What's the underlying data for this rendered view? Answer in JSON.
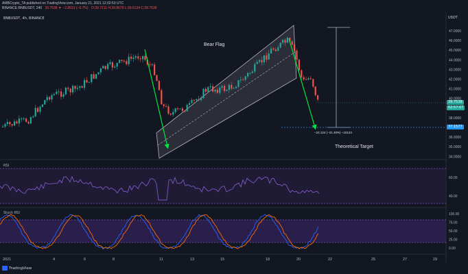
{
  "header": {
    "published": "AMBCrypto_TA published on TradingView.com, January 21, 2021 12:02:53 UTC",
    "symbol_line": "BINANCE:BNBUSDT, 240",
    "price_change": "39.7538 ▼ −2.8531 (−6.7%)",
    "ohlc": "O:39.7211 H:39.8679 L:39.6134 C:39.7538",
    "legend_title": "BNBUSDT, 4h, BINANCE",
    "currency": "USDT"
  },
  "price_axis": {
    "labels": [
      "47.0000",
      "46.0000",
      "45.0000",
      "44.0000",
      "43.0000",
      "42.0000",
      "41.0000",
      "40.0000",
      "39.0000",
      "38.0000",
      "37.0000",
      "36.0000",
      "35.0000",
      "34.0000"
    ],
    "tags": [
      {
        "label": "39.7538",
        "color": "#26a69a"
      },
      {
        "label": "02:57:07",
        "color": "#26a69a"
      },
      {
        "label": "37.1577",
        "color": "#2196f3"
      }
    ]
  },
  "annotations": {
    "bear_flag": "Bear Flag",
    "measure": "−10.124 (−21.40%) −10124",
    "target": "Theoretical Target"
  },
  "rsi": {
    "label": "RSI",
    "axis": [
      "60.00",
      "40.00"
    ]
  },
  "stoch": {
    "label": "Stoch RSI",
    "axis": [
      "100.00",
      "75.00",
      "50.00",
      "25.00",
      "0.00"
    ]
  },
  "time_axis": [
    "2021",
    "4",
    "6",
    "8",
    "11",
    "13",
    "15",
    "18",
    "20",
    "22",
    "25",
    "27",
    "29"
  ],
  "footer": {
    "brand": "TradingView"
  },
  "colors": {
    "up": "#26a69a",
    "down": "#ef5350",
    "rsi": "#7e57c2",
    "target_line": "#2196f3",
    "arrow": "#00e640"
  }
}
